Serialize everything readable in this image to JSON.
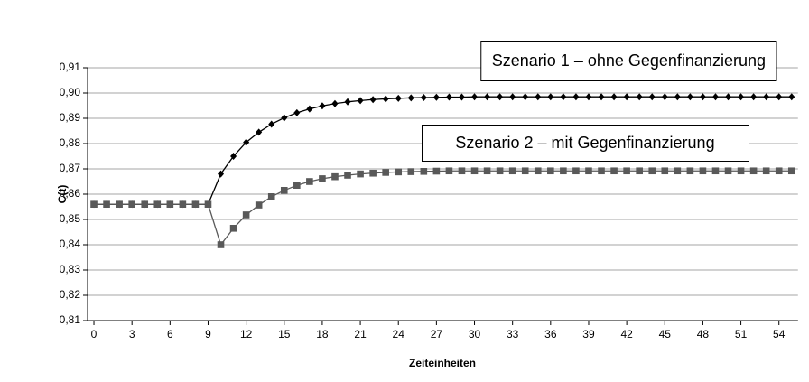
{
  "chart_data": {
    "type": "line",
    "xlabel": "Zeiteinheiten",
    "ylabel": "C(t)",
    "categories": [
      0,
      null,
      null,
      3,
      null,
      null,
      6,
      null,
      null,
      9,
      null,
      null,
      12,
      null,
      null,
      15,
      null,
      null,
      18,
      null,
      null,
      21,
      null,
      null,
      24,
      null,
      null,
      27,
      null,
      null,
      30,
      null,
      null,
      33,
      null,
      null,
      36,
      null,
      null,
      39,
      null,
      null,
      42,
      null,
      null,
      45,
      null,
      null,
      48,
      null,
      null,
      51,
      null,
      null,
      54,
      null
    ],
    "series": [
      {
        "name": "Szenario 1 – ohne Gegenfinanzierung",
        "color": "#000000",
        "marker": "diamond",
        "values": [
          0.856,
          0.856,
          0.856,
          0.856,
          0.856,
          0.856,
          0.856,
          0.856,
          0.856,
          0.856,
          0.868,
          0.875,
          0.8805,
          0.8845,
          0.8877,
          0.8902,
          0.8922,
          0.8937,
          0.8949,
          0.8958,
          0.8965,
          0.897,
          0.8974,
          0.8977,
          0.8979,
          0.8981,
          0.8982,
          0.8983,
          0.8984,
          0.8984,
          0.8985,
          0.8985,
          0.8985,
          0.8985,
          0.8985,
          0.8985,
          0.8985,
          0.8985,
          0.8985,
          0.8985,
          0.8985,
          0.8985,
          0.8985,
          0.8985,
          0.8985,
          0.8985,
          0.8985,
          0.8985,
          0.8985,
          0.8985,
          0.8985,
          0.8985,
          0.8985,
          0.8985,
          0.8985,
          0.8985
        ]
      },
      {
        "name": "Szenario 2 – mit Gegenfinanzierung",
        "color": "#595959",
        "marker": "square",
        "values": [
          0.856,
          0.856,
          0.856,
          0.856,
          0.856,
          0.856,
          0.856,
          0.856,
          0.856,
          0.856,
          0.84,
          0.8465,
          0.8518,
          0.8557,
          0.859,
          0.8615,
          0.8635,
          0.865,
          0.8661,
          0.8669,
          0.8675,
          0.868,
          0.8683,
          0.8686,
          0.8688,
          0.8689,
          0.869,
          0.8691,
          0.8692,
          0.8692,
          0.8692,
          0.8692,
          0.8692,
          0.8692,
          0.8692,
          0.8692,
          0.8692,
          0.8692,
          0.8692,
          0.8692,
          0.8692,
          0.8692,
          0.8692,
          0.8692,
          0.8692,
          0.8692,
          0.8692,
          0.8692,
          0.8692,
          0.8692,
          0.8692,
          0.8692,
          0.8692,
          0.8692,
          0.8692,
          0.8692
        ]
      }
    ],
    "ylim": [
      0.81,
      0.91
    ],
    "yticks": [
      {
        "value": 0.81,
        "label": "0,81"
      },
      {
        "value": 0.82,
        "label": "0,82"
      },
      {
        "value": 0.83,
        "label": "0,83"
      },
      {
        "value": 0.84,
        "label": "0,84"
      },
      {
        "value": 0.85,
        "label": "0,85"
      },
      {
        "value": 0.86,
        "label": "0,86"
      },
      {
        "value": 0.87,
        "label": "0,87"
      },
      {
        "value": 0.88,
        "label": "0,88"
      },
      {
        "value": 0.89,
        "label": "0,89"
      },
      {
        "value": 0.9,
        "label": "0,90"
      },
      {
        "value": 0.91,
        "label": "0,91"
      }
    ],
    "grid": true
  }
}
